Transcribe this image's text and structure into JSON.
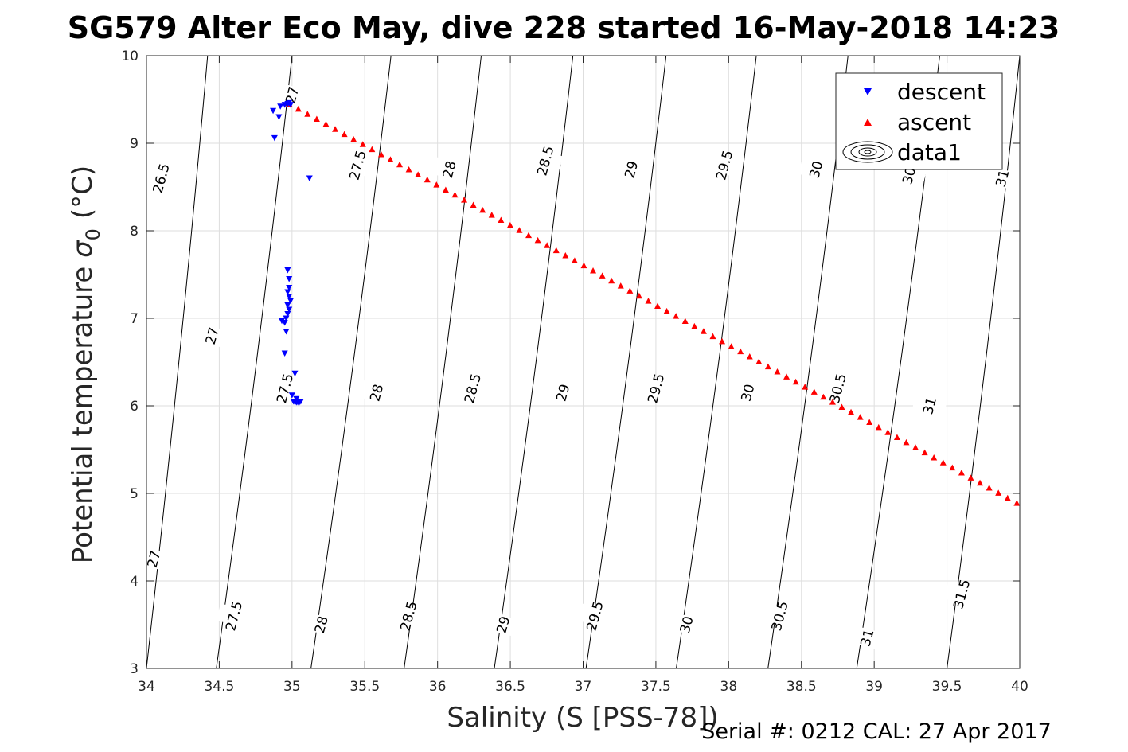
{
  "chart_data": {
    "type": "scatter",
    "title": "SG579 Alter Eco May, dive 228 started 16-May-2018 14:23",
    "xlabel": "Salinity (S [PSS-78])",
    "ylabel": "Potential temperature",
    "ylabel_symbol": "σ",
    "ylabel_subscript": "0",
    "ylabel_unit": "(°C)",
    "xlim": [
      34,
      40
    ],
    "ylim": [
      3,
      10
    ],
    "xticks": [
      34,
      34.5,
      35,
      35.5,
      36,
      36.5,
      37,
      37.5,
      38,
      38.5,
      39,
      39.5,
      40
    ],
    "xtick_labels": [
      "34",
      "34.5",
      "35",
      "35.5",
      "36",
      "36.5",
      "37",
      "37.5",
      "38",
      "38.5",
      "39",
      "39.5",
      "40"
    ],
    "yticks": [
      3,
      4,
      5,
      6,
      7,
      8,
      9,
      10
    ],
    "ytick_labels": [
      "3",
      "4",
      "5",
      "6",
      "7",
      "8",
      "9",
      "10"
    ],
    "grid": true,
    "legend_position": "top-right",
    "legend": [
      {
        "label": "descent",
        "marker": "triangle-down",
        "color": "#0000ff"
      },
      {
        "label": "ascent",
        "marker": "triangle-up",
        "color": "#ff0000"
      },
      {
        "label": "data1",
        "marker": "contour",
        "color": "#000000"
      }
    ],
    "series": [
      {
        "name": "descent",
        "color": "#0000ff",
        "marker": "triangle-down",
        "x": [
          34.87,
          34.88,
          34.91,
          34.92,
          34.95,
          34.97,
          34.98,
          34.99,
          35.12,
          34.97,
          34.98,
          34.98,
          34.97,
          34.98,
          34.99,
          34.97,
          34.98,
          34.97,
          34.96,
          34.95,
          34.93,
          34.96,
          34.95,
          35.02,
          35.0,
          35.01,
          35.02,
          35.03,
          35.04,
          35.05,
          35.06,
          35.03
        ],
        "y": [
          9.37,
          9.06,
          9.3,
          9.42,
          9.44,
          9.45,
          9.46,
          9.44,
          8.6,
          7.55,
          7.45,
          7.35,
          7.3,
          7.25,
          7.2,
          7.15,
          7.1,
          7.05,
          7.0,
          6.95,
          6.97,
          6.85,
          6.6,
          6.37,
          6.12,
          6.05,
          6.04,
          6.04,
          6.04,
          6.04,
          6.05,
          6.08
        ]
      },
      {
        "name": "ascent",
        "color": "#ff0000",
        "marker": "triangle-up",
        "start": [
          34.98,
          9.45
        ],
        "end": [
          39.98,
          4.89
        ],
        "count": 80
      }
    ],
    "contour_labels": [
      {
        "label": "26.5",
        "x": 34.1,
        "y": 8.6
      },
      {
        "label": "27",
        "x": 34.45,
        "y": 6.8
      },
      {
        "label": "27",
        "x": 35.0,
        "y": 9.55
      },
      {
        "label": "27",
        "x": 34.05,
        "y": 4.25
      },
      {
        "label": "27.5",
        "x": 35.45,
        "y": 8.75
      },
      {
        "label": "27.5",
        "x": 34.95,
        "y": 6.2
      },
      {
        "label": "27.5",
        "x": 34.6,
        "y": 3.6
      },
      {
        "label": "28",
        "x": 36.08,
        "y": 8.7
      },
      {
        "label": "28",
        "x": 35.58,
        "y": 6.15
      },
      {
        "label": "28",
        "x": 35.2,
        "y": 3.5
      },
      {
        "label": "28.5",
        "x": 36.74,
        "y": 8.8
      },
      {
        "label": "28.5",
        "x": 36.24,
        "y": 6.2
      },
      {
        "label": "28.5",
        "x": 35.8,
        "y": 3.6
      },
      {
        "label": "29",
        "x": 37.33,
        "y": 8.7
      },
      {
        "label": "29",
        "x": 36.86,
        "y": 6.15
      },
      {
        "label": "29",
        "x": 36.45,
        "y": 3.5
      },
      {
        "label": "29.5",
        "x": 37.97,
        "y": 8.75
      },
      {
        "label": "29.5",
        "x": 37.5,
        "y": 6.2
      },
      {
        "label": "29.5",
        "x": 37.08,
        "y": 3.6
      },
      {
        "label": "30",
        "x": 38.6,
        "y": 8.7
      },
      {
        "label": "30",
        "x": 38.13,
        "y": 6.15
      },
      {
        "label": "30",
        "x": 37.71,
        "y": 3.5
      },
      {
        "label": "30.5",
        "x": 39.25,
        "y": 8.7
      },
      {
        "label": "30.5",
        "x": 38.75,
        "y": 6.2
      },
      {
        "label": "30.5",
        "x": 38.35,
        "y": 3.6
      },
      {
        "label": "31",
        "x": 39.88,
        "y": 8.6
      },
      {
        "label": "31",
        "x": 39.38,
        "y": 6.0
      },
      {
        "label": "31",
        "x": 38.95,
        "y": 3.35
      },
      {
        "label": "31.5",
        "x": 39.6,
        "y": 3.85
      }
    ],
    "contour_lines": [
      {
        "x_bottom": 34.0,
        "x_top": 34.42
      },
      {
        "x_bottom": 34.48,
        "x_top": 35.0
      },
      {
        "x_bottom": 35.13,
        "x_top": 35.68
      },
      {
        "x_bottom": 35.77,
        "x_top": 36.3
      },
      {
        "x_bottom": 36.39,
        "x_top": 36.93
      },
      {
        "x_bottom": 37.02,
        "x_top": 37.57
      },
      {
        "x_bottom": 37.64,
        "x_top": 38.19
      },
      {
        "x_bottom": 38.27,
        "x_top": 38.82
      },
      {
        "x_bottom": 38.88,
        "x_top": 39.45
      },
      {
        "x_bottom": 39.5,
        "x_top": 40.0
      }
    ],
    "footer": "Serial #: 0212  CAL: 27 Apr 2017"
  }
}
